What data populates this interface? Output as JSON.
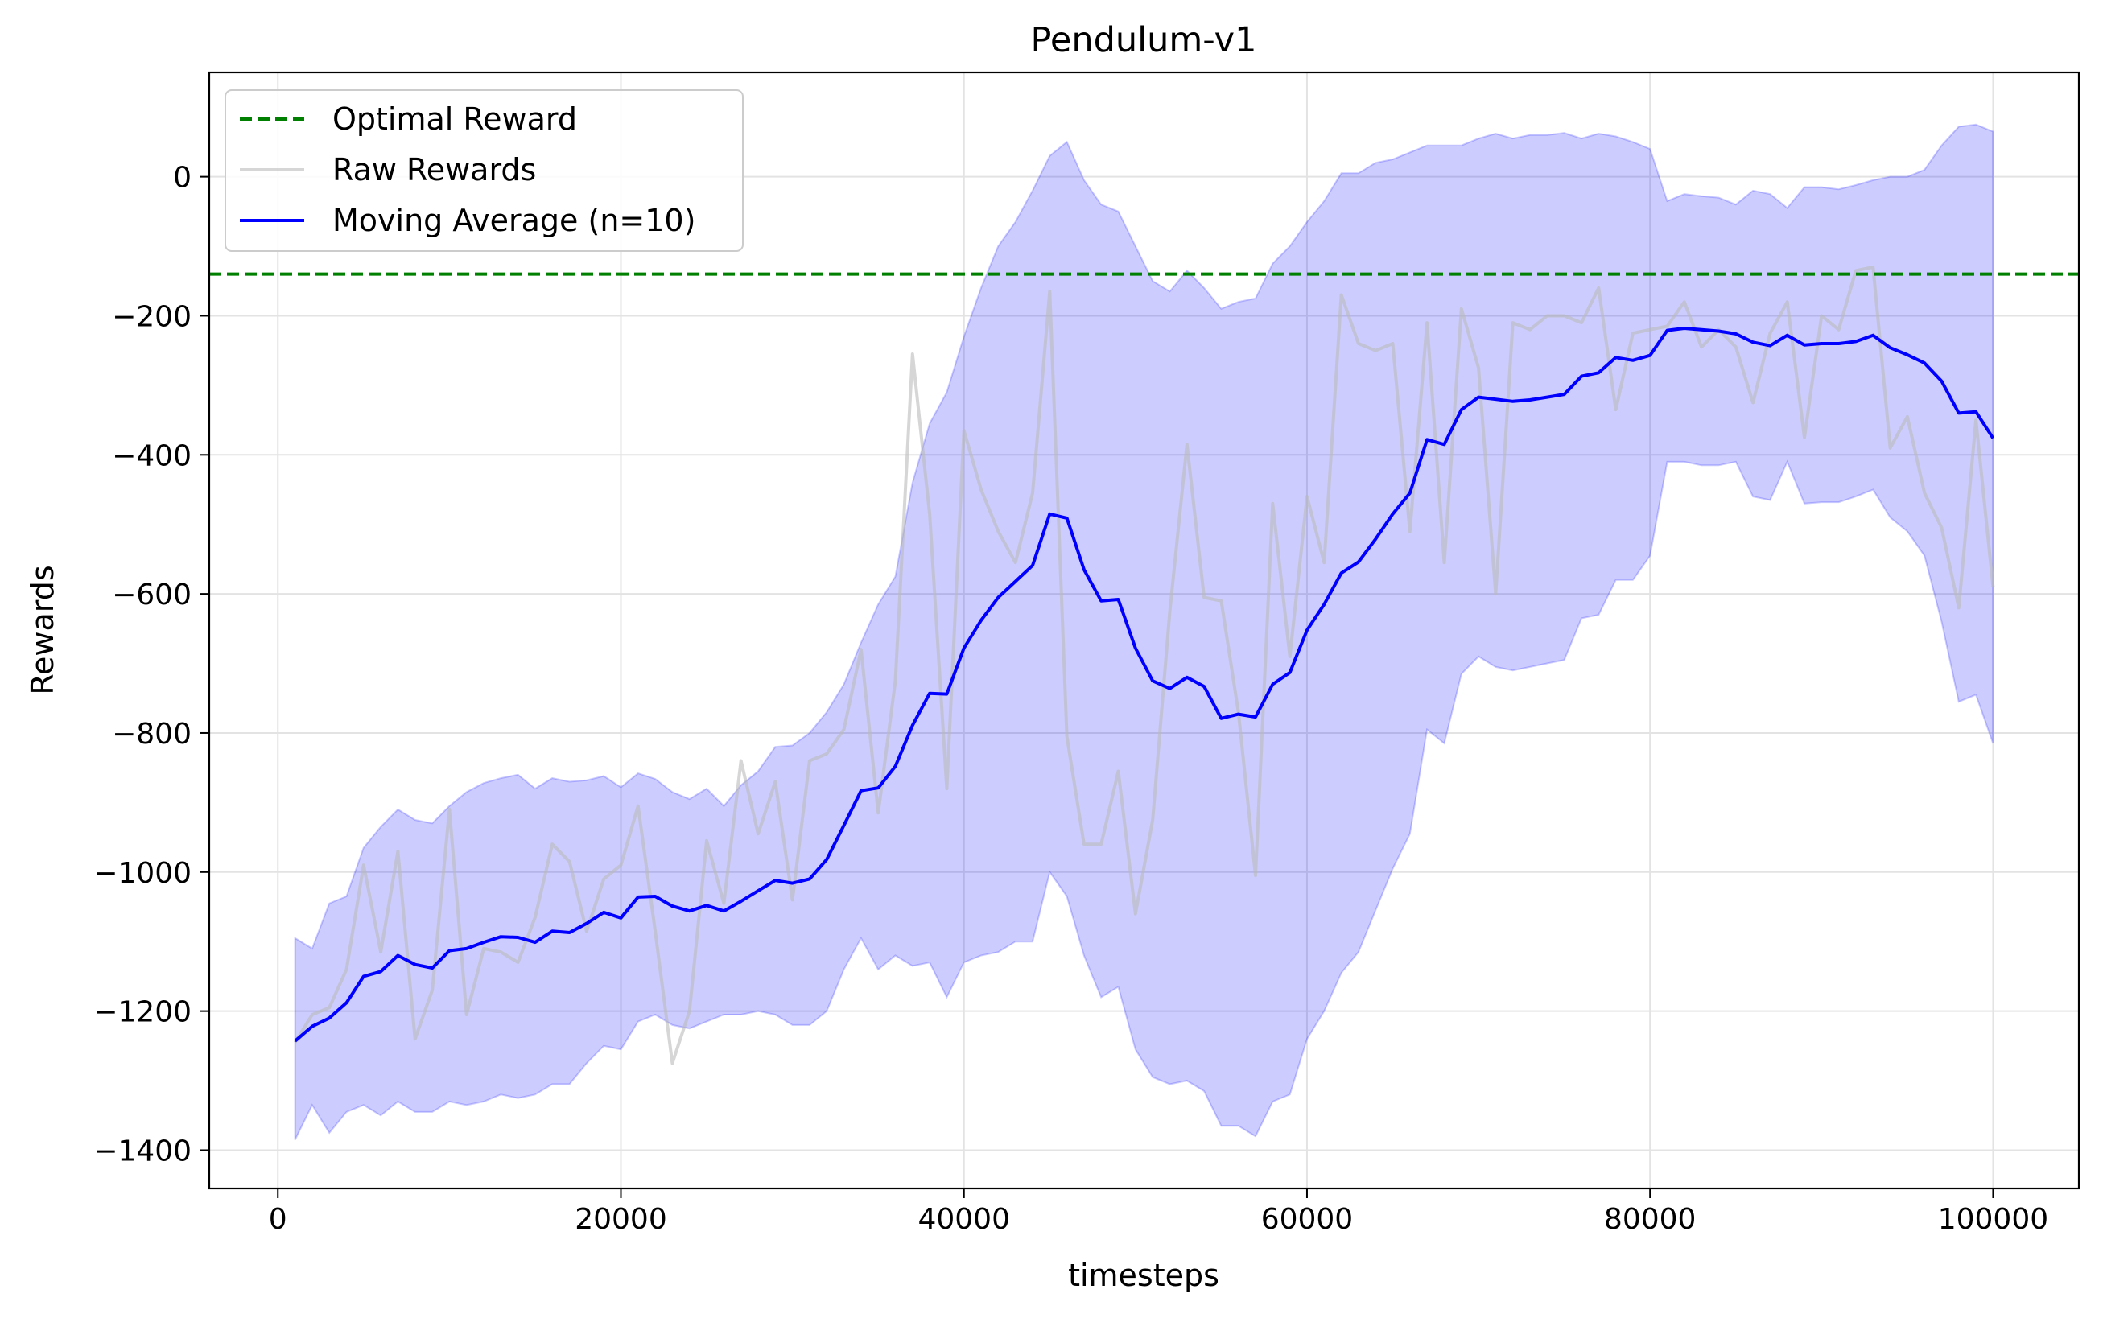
{
  "chart_data": {
    "type": "line",
    "title": "Pendulum-v1",
    "xlabel": "timesteps",
    "ylabel": "Rewards",
    "xlim": [
      -4000,
      105000
    ],
    "ylim": [
      -1455,
      150
    ],
    "grid": true,
    "legend_position": "top-left",
    "x_ticks": [
      0,
      20000,
      40000,
      60000,
      80000,
      100000
    ],
    "x_tick_labels": [
      "0",
      "20000",
      "40000",
      "60000",
      "80000",
      "100000"
    ],
    "y_ticks": [
      0,
      -200,
      -400,
      -600,
      -800,
      -1000,
      -1200,
      -1400
    ],
    "y_tick_labels": [
      "0",
      "−200",
      "−400",
      "−600",
      "−800",
      "−1000",
      "−1200",
      "−1400"
    ],
    "x": [
      1000,
      2000,
      3000,
      4000,
      5000,
      6000,
      7000,
      8000,
      9000,
      10000,
      11000,
      12000,
      13000,
      14000,
      15000,
      16000,
      17000,
      18000,
      19000,
      20000,
      21000,
      22000,
      23000,
      24000,
      25000,
      26000,
      27000,
      28000,
      29000,
      30000,
      31000,
      32000,
      33000,
      34000,
      35000,
      36000,
      37000,
      38000,
      39000,
      40000,
      41000,
      42000,
      43000,
      44000,
      45000,
      46000,
      47000,
      48000,
      49000,
      50000,
      51000,
      52000,
      53000,
      54000,
      55000,
      56000,
      57000,
      58000,
      59000,
      60000,
      61000,
      62000,
      63000,
      64000,
      65000,
      66000,
      67000,
      68000,
      69000,
      70000,
      71000,
      72000,
      73000,
      74000,
      75000,
      76000,
      77000,
      78000,
      79000,
      80000,
      81000,
      82000,
      83000,
      84000,
      85000,
      86000,
      87000,
      88000,
      89000,
      90000,
      91000,
      92000,
      93000,
      94000,
      95000,
      96000,
      97000,
      98000,
      99000,
      100000
    ],
    "optimal_reward": -140,
    "series": [
      {
        "name": "Optimal Reward",
        "color": "#008000",
        "style": "dashed"
      },
      {
        "name": "Raw Rewards",
        "color": "#bbbbbb",
        "values": [
          -1245,
          -1205,
          -1195,
          -1140,
          -990,
          -1115,
          -970,
          -1240,
          -1170,
          -910,
          -1205,
          -1110,
          -1115,
          -1130,
          -1065,
          -960,
          -985,
          -1085,
          -1010,
          -990,
          -905,
          -1085,
          -1275,
          -1200,
          -955,
          -1045,
          -840,
          -945,
          -870,
          -1040,
          -840,
          -830,
          -795,
          -680,
          -915,
          -725,
          -255,
          -485,
          -880,
          -365,
          -450,
          -510,
          -555,
          -455,
          -165,
          -805,
          -960,
          -960,
          -855,
          -1060,
          -925,
          -625,
          -385,
          -605,
          -610,
          -770,
          -1005,
          -470,
          -690,
          -460,
          -555,
          -170,
          -240,
          -250,
          -240,
          -510,
          -210,
          -555,
          -190,
          -275,
          -600,
          -210,
          -220,
          -200,
          -200,
          -210,
          -160,
          -335,
          -225,
          -220,
          -215,
          -180,
          -245,
          -220,
          -245,
          -325,
          -225,
          -180,
          -375,
          -200,
          -220,
          -135,
          -130,
          -390,
          -345,
          -455,
          -505,
          -620,
          -350,
          -590
        ]
      },
      {
        "name": "Moving Average (n=10)",
        "color": "#0000ff",
        "values": [
          -1243,
          -1222,
          -1210,
          -1188,
          -1150,
          -1143,
          -1120,
          -1133,
          -1138,
          -1113,
          -1110,
          -1101,
          -1093,
          -1094,
          -1101,
          -1085,
          -1087,
          -1074,
          -1058,
          -1066,
          -1036,
          -1035,
          -1049,
          -1056,
          -1048,
          -1056,
          -1042,
          -1027,
          -1012,
          -1016,
          -1010,
          -982,
          -933,
          -883,
          -879,
          -848,
          -789,
          -743,
          -744,
          -678,
          -638,
          -605,
          -582,
          -559,
          -485,
          -491,
          -565,
          -610,
          -608,
          -678,
          -725,
          -736,
          -720,
          -733,
          -779,
          -773,
          -777,
          -730,
          -713,
          -652,
          -615,
          -570,
          -554,
          -521,
          -485,
          -455,
          -378,
          -385,
          -335,
          -317,
          -320,
          -323,
          -321,
          -317,
          -313,
          -287,
          -282,
          -260,
          -264,
          -257,
          -221,
          -218,
          -220,
          -222,
          -226,
          -238,
          -243,
          -228,
          -242,
          -240,
          -240,
          -237,
          -228,
          -246,
          -256,
          -268,
          -294,
          -340,
          -338,
          -376
        ]
      }
    ],
    "band": {
      "color": "#0000ff",
      "upper": [
        -1095,
        -1110,
        -1045,
        -1035,
        -965,
        -935,
        -910,
        -925,
        -930,
        -905,
        -885,
        -872,
        -865,
        -860,
        -880,
        -865,
        -870,
        -868,
        -862,
        -878,
        -858,
        -866,
        -885,
        -895,
        -880,
        -905,
        -875,
        -855,
        -820,
        -818,
        -800,
        -770,
        -730,
        -670,
        -615,
        -575,
        -440,
        -355,
        -310,
        -230,
        -160,
        -100,
        -65,
        -20,
        30,
        50,
        -5,
        -40,
        -50,
        -100,
        -150,
        -165,
        -135,
        -160,
        -190,
        -180,
        -175,
        -125,
        -100,
        -65,
        -35,
        5,
        5,
        20,
        25,
        35,
        45,
        45,
        45,
        55,
        62,
        55,
        60,
        60,
        63,
        55,
        62,
        58,
        50,
        40,
        -35,
        -25,
        -28,
        -30,
        -40,
        -20,
        -25,
        -45,
        -15,
        -15,
        -18,
        -12,
        -5,
        0,
        0,
        10,
        45,
        72,
        75,
        65
      ],
      "lower": [
        -1385,
        -1335,
        -1375,
        -1345,
        -1335,
        -1350,
        -1330,
        -1345,
        -1345,
        -1330,
        -1335,
        -1330,
        -1320,
        -1325,
        -1320,
        -1305,
        -1305,
        -1275,
        -1250,
        -1255,
        -1215,
        -1205,
        -1220,
        -1225,
        -1215,
        -1205,
        -1205,
        -1200,
        -1205,
        -1220,
        -1220,
        -1200,
        -1140,
        -1095,
        -1140,
        -1120,
        -1135,
        -1130,
        -1180,
        -1130,
        -1120,
        -1115,
        -1100,
        -1100,
        -1000,
        -1035,
        -1120,
        -1180,
        -1165,
        -1255,
        -1295,
        -1305,
        -1300,
        -1315,
        -1365,
        -1365,
        -1380,
        -1330,
        -1320,
        -1240,
        -1200,
        -1145,
        -1115,
        -1055,
        -995,
        -945,
        -795,
        -815,
        -715,
        -690,
        -705,
        -710,
        -705,
        -700,
        -695,
        -635,
        -630,
        -580,
        -580,
        -545,
        -410,
        -410,
        -415,
        -415,
        -410,
        -460,
        -465,
        -410,
        -470,
        -468,
        -468,
        -460,
        -450,
        -490,
        -510,
        -545,
        -640,
        -755,
        -745,
        -815
      ]
    }
  }
}
